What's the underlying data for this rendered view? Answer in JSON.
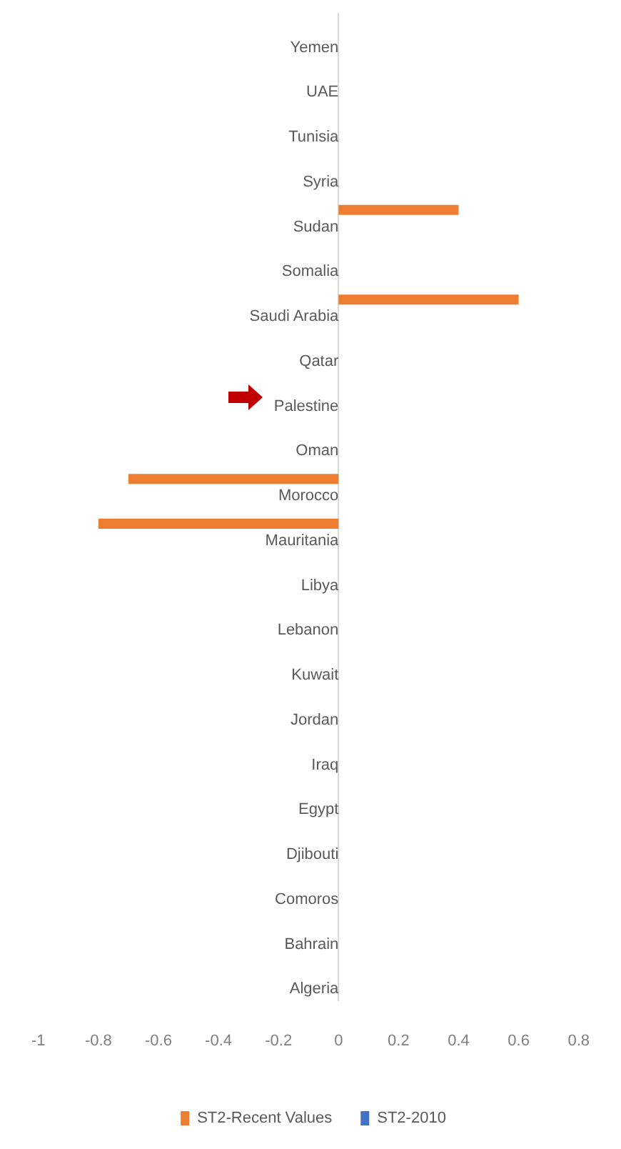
{
  "chart_data": {
    "type": "bar",
    "orientation": "horizontal",
    "categories": [
      "Yemen",
      "UAE",
      "Tunisia",
      "Syria",
      "Sudan",
      "Somalia",
      "Saudi Arabia",
      "Qatar",
      "Palestine",
      "Oman",
      "Morocco",
      "Mauritania",
      "Libya",
      "Lebanon",
      "Kuwait",
      "Jordan",
      "Iraq",
      "Egypt",
      "Djibouti",
      "Comoros",
      "Bahrain",
      "Algeria"
    ],
    "series": [
      {
        "name": "ST2-Recent Values",
        "color": "#ed7d31",
        "values": [
          null,
          null,
          null,
          null,
          0.4,
          null,
          0.6,
          null,
          null,
          null,
          -0.7,
          -0.8,
          null,
          null,
          null,
          null,
          null,
          null,
          null,
          null,
          null,
          null
        ]
      },
      {
        "name": "ST2-2010",
        "color": "#4472c4",
        "values": [
          null,
          null,
          null,
          null,
          null,
          null,
          null,
          null,
          null,
          null,
          null,
          null,
          null,
          null,
          null,
          null,
          null,
          null,
          null,
          null,
          null,
          null
        ]
      }
    ],
    "xlim": [
      -1,
      0.8
    ],
    "xticks": [
      -1,
      -0.8,
      -0.6,
      -0.4,
      -0.2,
      0,
      0.2,
      0.4,
      0.6,
      0.8
    ],
    "grid": false,
    "legend": "bottom"
  }
}
